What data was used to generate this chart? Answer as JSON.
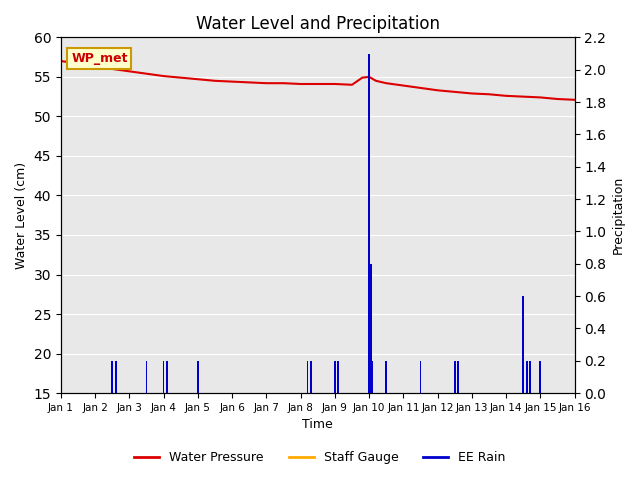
{
  "title": "Water Level and Precipitation",
  "xlabel": "Time",
  "ylabel_left": "Water Level (cm)",
  "ylabel_right": "Precipitation",
  "annotation_text": "WP_met",
  "annotation_box_color": "#ffffcc",
  "annotation_text_color": "#cc0000",
  "annotation_border_color": "#cc9900",
  "background_color": "#e8e8e8",
  "ylim_left": [
    15,
    60
  ],
  "ylim_right": [
    0.0,
    2.2
  ],
  "yticks_left": [
    15,
    20,
    25,
    30,
    35,
    40,
    45,
    50,
    55,
    60
  ],
  "yticks_right": [
    0.0,
    0.2,
    0.4,
    0.6,
    0.8,
    1.0,
    1.2,
    1.4,
    1.6,
    1.8,
    2.0,
    2.2
  ],
  "xlim": [
    0,
    15
  ],
  "xtick_labels": [
    "Jan 1",
    "Jan 2",
    "Jan 3",
    "Jan 4",
    "Jan 5",
    "Jan 6",
    "Jan 7",
    "Jan 8",
    "Jan 9",
    "Jan 10",
    "Jan 11",
    "Jan 12",
    "Jan 13",
    "Jan 14",
    "Jan 15",
    "Jan 16"
  ],
  "water_pressure_color": "#dd0000",
  "staff_gauge_color": "#ffaa00",
  "rain_color": "#0000cc",
  "water_pressure_x": [
    0.0,
    0.5,
    1.0,
    1.5,
    2.0,
    2.5,
    3.0,
    3.5,
    4.0,
    4.5,
    5.0,
    5.5,
    6.0,
    6.5,
    7.0,
    7.5,
    8.0,
    8.5,
    8.8,
    9.0,
    9.2,
    9.5,
    10.0,
    10.5,
    11.0,
    11.5,
    12.0,
    12.5,
    13.0,
    13.5,
    14.0,
    14.5,
    15.0
  ],
  "water_pressure_y": [
    57.0,
    56.7,
    56.3,
    56.0,
    55.7,
    55.4,
    55.1,
    54.9,
    54.7,
    54.5,
    54.4,
    54.3,
    54.2,
    54.2,
    54.1,
    54.1,
    54.1,
    54.0,
    54.9,
    55.0,
    54.5,
    54.2,
    53.9,
    53.6,
    53.3,
    53.1,
    52.9,
    52.8,
    52.6,
    52.5,
    52.4,
    52.2,
    52.1
  ],
  "rain_bars_x": [
    1.5,
    1.6,
    2.5,
    3.0,
    3.1,
    4.0,
    7.2,
    7.3,
    8.0,
    8.1,
    9.0,
    9.05,
    9.1,
    9.5,
    10.5,
    11.5,
    11.6,
    13.5,
    13.6,
    13.7,
    14.0
  ],
  "rain_bars_height": [
    0.2,
    0.2,
    0.2,
    0.2,
    0.2,
    0.2,
    0.2,
    0.2,
    0.2,
    0.2,
    2.1,
    0.8,
    0.2,
    0.2,
    0.2,
    0.2,
    0.2,
    0.6,
    0.2,
    0.2,
    0.2
  ],
  "rain_bar_width": 0.05,
  "legend_labels": [
    "Water Pressure",
    "Staff Gauge",
    "EE Rain"
  ],
  "legend_colors": [
    "#dd0000",
    "#ffaa00",
    "#0000cc"
  ],
  "legend_linestyles": [
    "-",
    "-",
    "-"
  ],
  "figsize": [
    6.4,
    4.8
  ],
  "dpi": 100
}
